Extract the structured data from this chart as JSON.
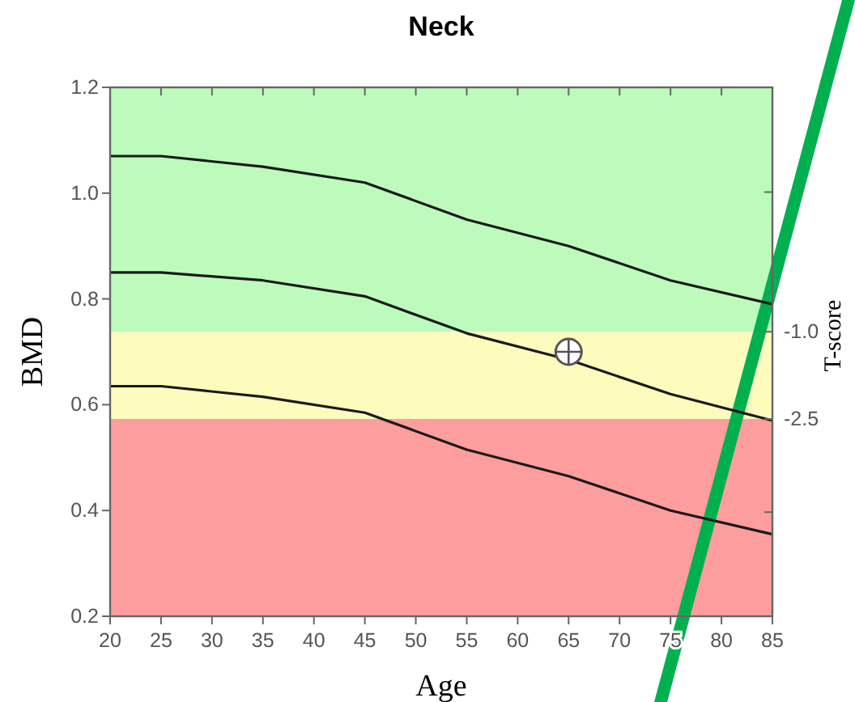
{
  "chart_data": {
    "type": "line",
    "title": "Neck",
    "xlabel": "Age",
    "ylabel": "BMD",
    "y2label": "T-score",
    "xlim": [
      20,
      85
    ],
    "xticks": [
      20,
      25,
      30,
      35,
      40,
      45,
      50,
      55,
      60,
      65,
      70,
      75,
      80,
      85
    ],
    "ylim": [
      0.2,
      1.2
    ],
    "yticks": [
      0.2,
      0.4,
      0.6,
      0.8,
      {
        "value": 1,
        "label": "1.0"
      },
      1.2
    ],
    "y2lim": [
      -5.89,
      3.2
    ],
    "y2ticks": [
      {
        "value": 1.4,
        "label": null
      },
      {
        "value": -1.0,
        "label": "-1.0"
      },
      {
        "value": -2.5,
        "label": "-2.5"
      },
      {
        "value": -4.1,
        "label": null
      }
    ],
    "bands": [
      {
        "axis": "y",
        "from": 0.738,
        "to": 1.2,
        "color": "#bdfbbd"
      },
      {
        "axis": "y",
        "from": 0.573,
        "to": 0.738,
        "color": "#fefcbd"
      },
      {
        "axis": "y",
        "from": 0.2,
        "to": 0.573,
        "color": "#fe9d9d"
      }
    ],
    "grid": false,
    "marker": "none",
    "line_style": "solid",
    "series": [
      {
        "color": "#1a1a1a",
        "x": [
          20,
          25,
          35,
          45,
          55,
          65,
          75,
          85
        ],
        "values": [
          1.07,
          1.07,
          1.05,
          1.02,
          0.95,
          0.9,
          0.835,
          0.79
        ]
      },
      {
        "color": "#1a1a1a",
        "x": [
          20,
          25,
          35,
          45,
          55,
          65,
          75,
          85
        ],
        "values": [
          0.85,
          0.85,
          0.835,
          0.805,
          0.735,
          0.685,
          0.62,
          0.57
        ]
      },
      {
        "color": "#1a1a1a",
        "x": [
          20,
          25,
          35,
          45,
          55,
          65,
          75,
          85
        ],
        "values": [
          0.635,
          0.635,
          0.615,
          0.585,
          0.515,
          0.465,
          0.4,
          0.355
        ]
      },
      {
        "type": "scatter",
        "marker": "circle",
        "color": "#ffffff",
        "x": [
          65
        ],
        "values": [
          0.7
        ]
      }
    ]
  }
}
